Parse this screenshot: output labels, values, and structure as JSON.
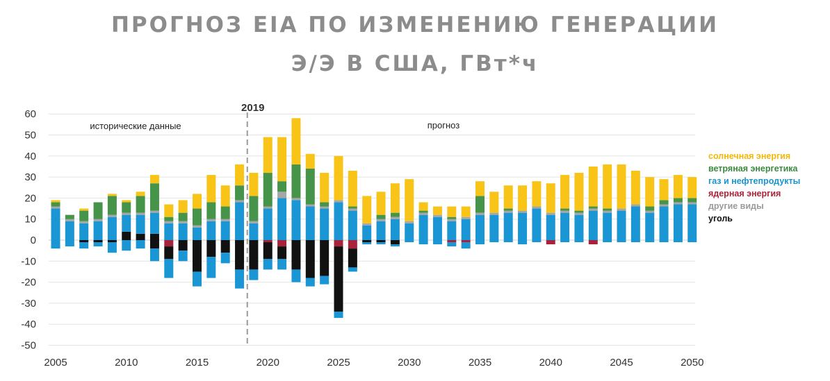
{
  "title_line1": "ПРОГНОЗ EIA ПО ИЗМЕНЕНИЮ ГЕНЕРАЦИИ",
  "title_line2": "Э/Э В США, ГВт*ч",
  "colors": {
    "solar": "#f9c418",
    "wind": "#45944a",
    "gas": "#1b96d4",
    "nuclear": "#a8233a",
    "other": "#a6a6a6",
    "coal": "#111111",
    "grid": "#e4e4e4",
    "divider": "#9a9a9a"
  },
  "chart_data": {
    "type": "bar",
    "stacked": true,
    "annotations": {
      "divider_label": "2019",
      "historical": "исторические данные",
      "forecast": "прогноз"
    },
    "x": [
      2005,
      2006,
      2007,
      2008,
      2009,
      2010,
      2011,
      2012,
      2013,
      2014,
      2015,
      2016,
      2017,
      2018,
      2019,
      2020,
      2021,
      2022,
      2023,
      2024,
      2025,
      2026,
      2027,
      2028,
      2029,
      2030,
      2031,
      2032,
      2033,
      2034,
      2035,
      2036,
      2037,
      2038,
      2039,
      2040,
      2041,
      2042,
      2043,
      2044,
      2045,
      2046,
      2047,
      2048,
      2049,
      2050
    ],
    "x_ticks": [
      "2005",
      "2010",
      "2015",
      "2020",
      "2025",
      "2030",
      "2035",
      "2040",
      "2045",
      "2050"
    ],
    "ylim": [
      -50,
      60
    ],
    "y_ticks": [
      -50,
      -40,
      -30,
      -20,
      -10,
      0,
      10,
      20,
      30,
      40,
      50,
      60
    ],
    "grid": true,
    "legend_position": "right",
    "series": [
      {
        "name": "уголь",
        "key": "coal",
        "values": [
          0,
          0,
          -1,
          -1,
          -1,
          4,
          3,
          3,
          -6,
          -5,
          -15,
          -8,
          -6,
          -14,
          -14,
          -8,
          -6,
          -14,
          -18,
          -17,
          -31,
          -9,
          -1,
          -1,
          -2,
          0,
          0,
          0,
          0,
          0,
          0,
          0,
          0,
          0,
          0,
          0,
          0,
          0,
          0,
          0,
          0,
          0,
          0,
          0,
          0,
          0
        ]
      },
      {
        "name": "ядерная энергия",
        "key": "nuclear",
        "values": [
          0,
          0,
          0,
          0,
          0,
          0,
          0,
          0,
          -3,
          0,
          0,
          0,
          0,
          0,
          0,
          -1,
          -3,
          0,
          0,
          0,
          -3,
          -4,
          0,
          0,
          0,
          0,
          0,
          0,
          -1,
          -1,
          0,
          0,
          0,
          0,
          0,
          -2,
          0,
          0,
          -2,
          0,
          0,
          0,
          0,
          0,
          0,
          0
        ]
      },
      {
        "name": "газ и нефтепродукты",
        "key": "gas",
        "values": [
          15,
          9,
          8,
          9,
          11,
          8,
          9,
          10,
          8,
          8,
          6,
          9,
          9,
          18,
          8,
          15,
          20,
          19,
          16,
          15,
          18,
          14,
          7,
          9,
          10,
          8,
          12,
          11,
          9,
          10,
          12,
          12,
          13,
          13,
          15,
          12,
          13,
          12,
          14,
          13,
          14,
          16,
          13,
          16,
          17,
          17
        ]
      },
      {
        "name": "другие виды",
        "key": "other",
        "values": [
          1,
          1,
          1,
          1,
          1,
          1,
          1,
          1,
          1,
          1,
          1,
          1,
          1,
          1,
          1,
          1,
          3,
          1,
          1,
          1,
          1,
          1,
          1,
          1,
          1,
          1,
          1,
          1,
          1,
          1,
          1,
          1,
          1,
          1,
          1,
          1,
          1,
          1,
          1,
          1,
          1,
          1,
          1,
          1,
          1,
          1
        ]
      },
      {
        "name": "ветряная энергетика",
        "key": "wind",
        "values": [
          2,
          2,
          5,
          8,
          9,
          5,
          8,
          13,
          2,
          4,
          8,
          8,
          6,
          7,
          12,
          16,
          5,
          16,
          17,
          2,
          0,
          1,
          0,
          2,
          2,
          0,
          1,
          0,
          1,
          0,
          8,
          0,
          1,
          0,
          0,
          0,
          1,
          1,
          1,
          1,
          0,
          0,
          2,
          2,
          2,
          2
        ]
      },
      {
        "name": "солнечная энергия",
        "key": "solar",
        "values": [
          1,
          0,
          1,
          0,
          1,
          1,
          2,
          4,
          6,
          6,
          7,
          13,
          10,
          10,
          11,
          17,
          21,
          22,
          7,
          14,
          21,
          17,
          13,
          11,
          14,
          20,
          4,
          4,
          5,
          5,
          7,
          10,
          11,
          12,
          12,
          14,
          16,
          18,
          19,
          21,
          21,
          16,
          14,
          10,
          11,
          10
        ]
      },
      {
        "name": "уголь",
        "key": "coal",
        "values": [
          0,
          0,
          0,
          0,
          0,
          0,
          0,
          -4,
          0,
          0,
          0,
          0,
          0,
          0,
          0,
          0,
          0,
          0,
          0,
          0,
          0,
          0,
          0,
          0,
          0,
          0,
          0,
          0,
          0,
          0,
          0,
          0,
          0,
          0,
          0,
          0,
          0,
          0,
          0,
          0,
          0,
          0,
          0,
          0,
          0,
          0
        ]
      }
    ],
    "neg_gas": [
      -4,
      -3,
      -3,
      -2,
      -5,
      -5,
      -4,
      -6,
      -9,
      -5,
      -7,
      -10,
      -5,
      -9,
      -5,
      -5,
      -5,
      -6,
      -4,
      -4,
      -3,
      -2,
      -1,
      -1,
      -1,
      -1,
      -2,
      -2,
      -2,
      -3,
      -2,
      -1,
      -1,
      -2,
      -1,
      0,
      -1,
      -1,
      0,
      -1,
      -1,
      -1,
      -1,
      -1,
      -1,
      -1
    ]
  },
  "legend": {
    "solar": "солнечная энергия",
    "wind": "ветряная энергетика",
    "gas": "газ и нефтепродукты",
    "nuclear": "ядерная энергия",
    "other": "другие виды",
    "coal": "уголь"
  }
}
